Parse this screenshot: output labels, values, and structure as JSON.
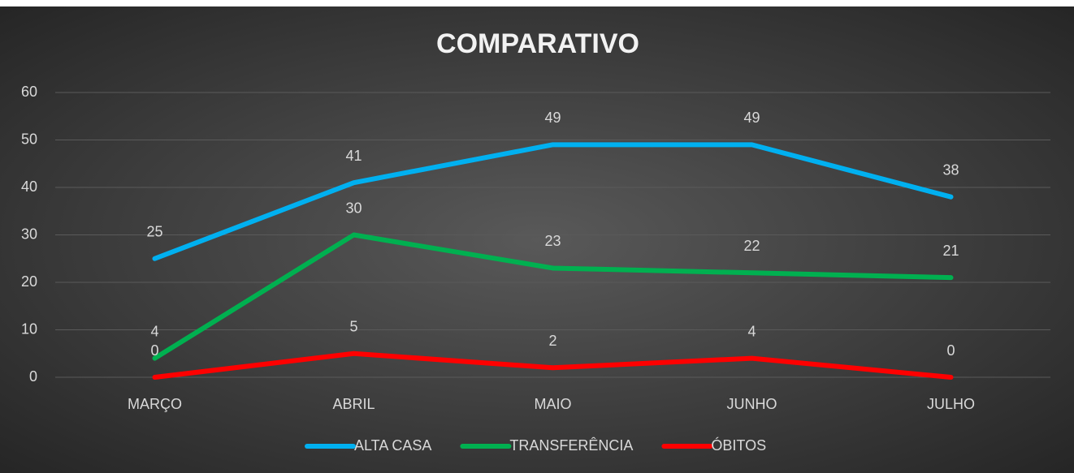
{
  "chart_data": {
    "type": "line",
    "title": "COMPARATIVO",
    "categories": [
      "MARÇO",
      "ABRIL",
      "MAIO",
      "JUNHO",
      "JULHO"
    ],
    "series": [
      {
        "name": "ALTA CASA",
        "color": "#00b0f0",
        "values": [
          25,
          41,
          49,
          49,
          38
        ]
      },
      {
        "name": "TRANSFERÊNCIA",
        "color": "#00b050",
        "values": [
          4,
          30,
          23,
          22,
          21
        ]
      },
      {
        "name": "ÓBITOS",
        "color": "#ff0000",
        "values": [
          0,
          5,
          2,
          4,
          0
        ]
      }
    ],
    "ylim": [
      0,
      60
    ],
    "yticks": [
      0,
      10,
      20,
      30,
      40,
      50,
      60
    ],
    "grid": true,
    "legend": "bottom"
  }
}
